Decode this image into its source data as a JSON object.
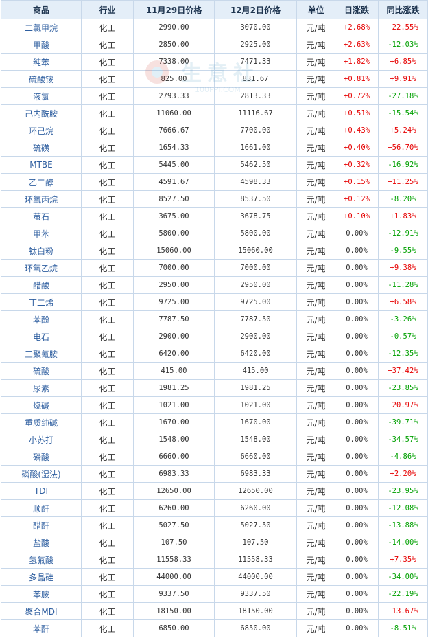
{
  "table": {
    "headers": [
      "商品",
      "行业",
      "11月29日价格",
      "12月2日价格",
      "单位",
      "日涨跌",
      "同比涨跌"
    ],
    "rows": [
      {
        "name": "二氯甲烷",
        "industry": "化工",
        "p1": "2990.00",
        "p2": "3070.00",
        "unit": "元/吨",
        "day": "+2.68%",
        "day_dir": "up",
        "yoy": "+22.55%",
        "yoy_dir": "up"
      },
      {
        "name": "甲酸",
        "industry": "化工",
        "p1": "2850.00",
        "p2": "2925.00",
        "unit": "元/吨",
        "day": "+2.63%",
        "day_dir": "up",
        "yoy": "-12.03%",
        "yoy_dir": "down"
      },
      {
        "name": "纯苯",
        "industry": "化工",
        "p1": "7338.00",
        "p2": "7471.33",
        "unit": "元/吨",
        "day": "+1.82%",
        "day_dir": "up",
        "yoy": "+6.85%",
        "yoy_dir": "up"
      },
      {
        "name": "硫酸铵",
        "industry": "化工",
        "p1": "825.00",
        "p2": "831.67",
        "unit": "元/吨",
        "day": "+0.81%",
        "day_dir": "up",
        "yoy": "+9.91%",
        "yoy_dir": "up"
      },
      {
        "name": "液氯",
        "industry": "化工",
        "p1": "2793.33",
        "p2": "2813.33",
        "unit": "元/吨",
        "day": "+0.72%",
        "day_dir": "up",
        "yoy": "-27.18%",
        "yoy_dir": "down"
      },
      {
        "name": "己内酰胺",
        "industry": "化工",
        "p1": "11060.00",
        "p2": "11116.67",
        "unit": "元/吨",
        "day": "+0.51%",
        "day_dir": "up",
        "yoy": "-15.54%",
        "yoy_dir": "down"
      },
      {
        "name": "环己烷",
        "industry": "化工",
        "p1": "7666.67",
        "p2": "7700.00",
        "unit": "元/吨",
        "day": "+0.43%",
        "day_dir": "up",
        "yoy": "+5.24%",
        "yoy_dir": "up"
      },
      {
        "name": "硫磺",
        "industry": "化工",
        "p1": "1654.33",
        "p2": "1661.00",
        "unit": "元/吨",
        "day": "+0.40%",
        "day_dir": "up",
        "yoy": "+56.70%",
        "yoy_dir": "up"
      },
      {
        "name": "MTBE",
        "industry": "化工",
        "p1": "5445.00",
        "p2": "5462.50",
        "unit": "元/吨",
        "day": "+0.32%",
        "day_dir": "up",
        "yoy": "-16.92%",
        "yoy_dir": "down"
      },
      {
        "name": "乙二醇",
        "industry": "化工",
        "p1": "4591.67",
        "p2": "4598.33",
        "unit": "元/吨",
        "day": "+0.15%",
        "day_dir": "up",
        "yoy": "+11.25%",
        "yoy_dir": "up"
      },
      {
        "name": "环氧丙烷",
        "industry": "化工",
        "p1": "8527.50",
        "p2": "8537.50",
        "unit": "元/吨",
        "day": "+0.12%",
        "day_dir": "up",
        "yoy": "-8.20%",
        "yoy_dir": "down"
      },
      {
        "name": "萤石",
        "industry": "化工",
        "p1": "3675.00",
        "p2": "3678.75",
        "unit": "元/吨",
        "day": "+0.10%",
        "day_dir": "up",
        "yoy": "+1.83%",
        "yoy_dir": "up"
      },
      {
        "name": "甲苯",
        "industry": "化工",
        "p1": "5800.00",
        "p2": "5800.00",
        "unit": "元/吨",
        "day": "0.00%",
        "day_dir": "flat",
        "yoy": "-12.91%",
        "yoy_dir": "down"
      },
      {
        "name": "钛白粉",
        "industry": "化工",
        "p1": "15060.00",
        "p2": "15060.00",
        "unit": "元/吨",
        "day": "0.00%",
        "day_dir": "flat",
        "yoy": "-9.55%",
        "yoy_dir": "down"
      },
      {
        "name": "环氧乙烷",
        "industry": "化工",
        "p1": "7000.00",
        "p2": "7000.00",
        "unit": "元/吨",
        "day": "0.00%",
        "day_dir": "flat",
        "yoy": "+9.38%",
        "yoy_dir": "up"
      },
      {
        "name": "醋酸",
        "industry": "化工",
        "p1": "2950.00",
        "p2": "2950.00",
        "unit": "元/吨",
        "day": "0.00%",
        "day_dir": "flat",
        "yoy": "-11.28%",
        "yoy_dir": "down"
      },
      {
        "name": "丁二烯",
        "industry": "化工",
        "p1": "9725.00",
        "p2": "9725.00",
        "unit": "元/吨",
        "day": "0.00%",
        "day_dir": "flat",
        "yoy": "+6.58%",
        "yoy_dir": "up"
      },
      {
        "name": "苯酚",
        "industry": "化工",
        "p1": "7787.50",
        "p2": "7787.50",
        "unit": "元/吨",
        "day": "0.00%",
        "day_dir": "flat",
        "yoy": "-3.26%",
        "yoy_dir": "down"
      },
      {
        "name": "电石",
        "industry": "化工",
        "p1": "2900.00",
        "p2": "2900.00",
        "unit": "元/吨",
        "day": "0.00%",
        "day_dir": "flat",
        "yoy": "-0.57%",
        "yoy_dir": "down"
      },
      {
        "name": "三聚氰胺",
        "industry": "化工",
        "p1": "6420.00",
        "p2": "6420.00",
        "unit": "元/吨",
        "day": "0.00%",
        "day_dir": "flat",
        "yoy": "-12.35%",
        "yoy_dir": "down"
      },
      {
        "name": "硫酸",
        "industry": "化工",
        "p1": "415.00",
        "p2": "415.00",
        "unit": "元/吨",
        "day": "0.00%",
        "day_dir": "flat",
        "yoy": "+37.42%",
        "yoy_dir": "up"
      },
      {
        "name": "尿素",
        "industry": "化工",
        "p1": "1981.25",
        "p2": "1981.25",
        "unit": "元/吨",
        "day": "0.00%",
        "day_dir": "flat",
        "yoy": "-23.85%",
        "yoy_dir": "down"
      },
      {
        "name": "烧碱",
        "industry": "化工",
        "p1": "1021.00",
        "p2": "1021.00",
        "unit": "元/吨",
        "day": "0.00%",
        "day_dir": "flat",
        "yoy": "+20.97%",
        "yoy_dir": "up"
      },
      {
        "name": "重质纯碱",
        "industry": "化工",
        "p1": "1670.00",
        "p2": "1670.00",
        "unit": "元/吨",
        "day": "0.00%",
        "day_dir": "flat",
        "yoy": "-39.71%",
        "yoy_dir": "down"
      },
      {
        "name": "小苏打",
        "industry": "化工",
        "p1": "1548.00",
        "p2": "1548.00",
        "unit": "元/吨",
        "day": "0.00%",
        "day_dir": "flat",
        "yoy": "-34.57%",
        "yoy_dir": "down"
      },
      {
        "name": "磷酸",
        "industry": "化工",
        "p1": "6660.00",
        "p2": "6660.00",
        "unit": "元/吨",
        "day": "0.00%",
        "day_dir": "flat",
        "yoy": "-4.86%",
        "yoy_dir": "down"
      },
      {
        "name": "磷酸(湿法)",
        "industry": "化工",
        "p1": "6983.33",
        "p2": "6983.33",
        "unit": "元/吨",
        "day": "0.00%",
        "day_dir": "flat",
        "yoy": "+2.20%",
        "yoy_dir": "up"
      },
      {
        "name": "TDI",
        "industry": "化工",
        "p1": "12650.00",
        "p2": "12650.00",
        "unit": "元/吨",
        "day": "0.00%",
        "day_dir": "flat",
        "yoy": "-23.95%",
        "yoy_dir": "down"
      },
      {
        "name": "顺酐",
        "industry": "化工",
        "p1": "6260.00",
        "p2": "6260.00",
        "unit": "元/吨",
        "day": "0.00%",
        "day_dir": "flat",
        "yoy": "-12.08%",
        "yoy_dir": "down"
      },
      {
        "name": "醋酐",
        "industry": "化工",
        "p1": "5027.50",
        "p2": "5027.50",
        "unit": "元/吨",
        "day": "0.00%",
        "day_dir": "flat",
        "yoy": "-13.88%",
        "yoy_dir": "down"
      },
      {
        "name": "盐酸",
        "industry": "化工",
        "p1": "107.50",
        "p2": "107.50",
        "unit": "元/吨",
        "day": "0.00%",
        "day_dir": "flat",
        "yoy": "-14.00%",
        "yoy_dir": "down"
      },
      {
        "name": "氢氟酸",
        "industry": "化工",
        "p1": "11558.33",
        "p2": "11558.33",
        "unit": "元/吨",
        "day": "0.00%",
        "day_dir": "flat",
        "yoy": "+7.35%",
        "yoy_dir": "up"
      },
      {
        "name": "多晶硅",
        "industry": "化工",
        "p1": "44000.00",
        "p2": "44000.00",
        "unit": "元/吨",
        "day": "0.00%",
        "day_dir": "flat",
        "yoy": "-34.00%",
        "yoy_dir": "down"
      },
      {
        "name": "苯胺",
        "industry": "化工",
        "p1": "9337.50",
        "p2": "9337.50",
        "unit": "元/吨",
        "day": "0.00%",
        "day_dir": "flat",
        "yoy": "-22.19%",
        "yoy_dir": "down"
      },
      {
        "name": "聚合MDI",
        "industry": "化工",
        "p1": "18150.00",
        "p2": "18150.00",
        "unit": "元/吨",
        "day": "0.00%",
        "day_dir": "flat",
        "yoy": "+13.67%",
        "yoy_dir": "up"
      },
      {
        "name": "苯酐",
        "industry": "化工",
        "p1": "6850.00",
        "p2": "6850.00",
        "unit": "元/吨",
        "day": "0.00%",
        "day_dir": "flat",
        "yoy": "-8.51%",
        "yoy_dir": "down"
      }
    ]
  },
  "watermark": {
    "text": "生意社",
    "url": "100PPI.COM"
  },
  "colors": {
    "up": "#e60000",
    "down": "#00a000",
    "header_bg": "#e4eef8",
    "border": "#c8d8ea",
    "name_text": "#2f5fa0"
  }
}
